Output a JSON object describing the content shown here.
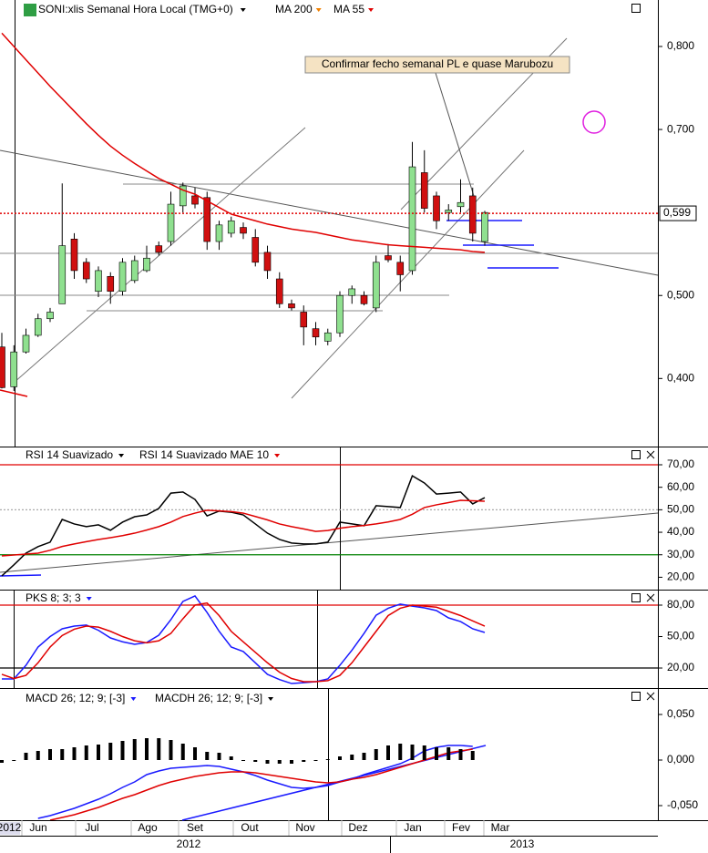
{
  "chart_data": [
    {
      "type": "candlestick",
      "title": "SONI:xlis Semanal Hora Local (TMG+0)",
      "open": [
        0.438,
        0.39,
        0.432,
        0.452,
        0.472,
        0.49,
        0.568,
        0.54,
        0.505,
        0.523,
        0.505,
        0.518,
        0.53,
        0.56,
        0.565,
        0.608,
        0.62,
        0.618,
        0.565,
        0.575,
        0.582,
        0.57,
        0.552,
        0.52,
        0.49,
        0.48,
        0.46,
        0.445,
        0.455,
        0.5,
        0.5,
        0.485,
        0.548,
        0.54,
        0.53,
        0.648,
        0.62,
        0.6,
        0.607,
        0.62,
        0.565
      ],
      "high": [
        0.455,
        0.44,
        0.46,
        0.478,
        0.485,
        0.635,
        0.575,
        0.545,
        0.535,
        0.528,
        0.545,
        0.548,
        0.56,
        0.565,
        0.625,
        0.636,
        0.63,
        0.625,
        0.59,
        0.595,
        0.588,
        0.58,
        0.56,
        0.528,
        0.495,
        0.488,
        0.468,
        0.46,
        0.505,
        0.512,
        0.505,
        0.548,
        0.562,
        0.548,
        0.685,
        0.675,
        0.625,
        0.61,
        0.64,
        0.63,
        0.602
      ],
      "low": [
        0.388,
        0.385,
        0.43,
        0.45,
        0.468,
        0.49,
        0.52,
        0.515,
        0.498,
        0.49,
        0.5,
        0.515,
        0.528,
        0.548,
        0.56,
        0.6,
        0.605,
        0.555,
        0.555,
        0.57,
        0.568,
        0.535,
        0.52,
        0.485,
        0.482,
        0.44,
        0.44,
        0.44,
        0.45,
        0.49,
        0.488,
        0.48,
        0.54,
        0.505,
        0.525,
        0.6,
        0.58,
        0.59,
        0.6,
        0.565,
        0.56
      ],
      "close": [
        0.389,
        0.432,
        0.452,
        0.472,
        0.48,
        0.56,
        0.53,
        0.52,
        0.53,
        0.505,
        0.54,
        0.542,
        0.545,
        0.552,
        0.61,
        0.632,
        0.61,
        0.565,
        0.585,
        0.59,
        0.575,
        0.54,
        0.53,
        0.49,
        0.485,
        0.462,
        0.45,
        0.455,
        0.5,
        0.508,
        0.49,
        0.54,
        0.543,
        0.525,
        0.655,
        0.605,
        0.59,
        0.603,
        0.612,
        0.575,
        0.6
      ],
      "up_color": "#8fe08f",
      "down_color": "#d01010",
      "series": [
        {
          "name": "MA 200",
          "color": "#f08000"
        },
        {
          "name": "MA 55",
          "color": "#e00000",
          "values": [
            0.816,
            0.8,
            0.784,
            0.768,
            0.752,
            0.737,
            0.722,
            0.707,
            0.693,
            0.68,
            0.669,
            0.659,
            0.65,
            0.641,
            0.634,
            0.627,
            0.622,
            0.614,
            0.606,
            0.598,
            0.594,
            0.59,
            0.586,
            0.583,
            0.58,
            0.578,
            0.576,
            0.573,
            0.57,
            0.567,
            0.565,
            0.563,
            0.561,
            0.56,
            0.559,
            0.558,
            0.557,
            0.556,
            0.555,
            0.553,
            0.552
          ]
        }
      ],
      "last_price": {
        "value": 0.599,
        "label": "0,599"
      },
      "annotation": "Confirmar fecho semanal PL e quase Marubozu",
      "ylim": [
        0.318,
        0.856
      ],
      "yticks": [
        {
          "value": 0.8,
          "label": "0,800"
        },
        {
          "value": 0.7,
          "label": "0,700"
        },
        {
          "value": 0.5,
          "label": "0,500"
        },
        {
          "value": 0.4,
          "label": "0,400"
        }
      ]
    },
    {
      "type": "line",
      "series": [
        {
          "name": "RSI 14 Suavizado",
          "color": "#000000",
          "values": [
            20.6,
            25.5,
            30.7,
            33.6,
            35.6,
            45.7,
            43.7,
            42.5,
            43.3,
            40.9,
            44.5,
            46.9,
            47.7,
            50.6,
            57.4,
            57.9,
            54.6,
            47.3,
            49.4,
            48.9,
            47.7,
            43.7,
            39.6,
            36.8,
            35.2,
            34.8,
            34.8,
            35.6,
            44.5,
            43.7,
            42.9,
            51.8,
            51.4,
            51.0,
            65.1,
            61.9,
            57.0,
            57.4,
            57.9,
            52.6,
            55.4
          ]
        },
        {
          "name": "RSI 14 Suavizado MAE 10",
          "color": "#e00000",
          "values": [
            29.5,
            29.9,
            30.3,
            30.7,
            32.0,
            33.7,
            34.8,
            35.8,
            36.8,
            37.6,
            38.5,
            39.6,
            41.0,
            42.5,
            44.5,
            47.0,
            48.5,
            49.8,
            49.5,
            49.2,
            48.5,
            47.0,
            45.5,
            43.7,
            42.5,
            41.5,
            40.4,
            40.8,
            41.8,
            42.5,
            43.0,
            43.7,
            44.6,
            45.7,
            48.0,
            51.0,
            52.2,
            53.2,
            54.2,
            54.0,
            53.8
          ]
        }
      ],
      "levels": [
        {
          "value": 70,
          "color": "#e00000"
        },
        {
          "value": 50,
          "color": "#aaaaaa"
        },
        {
          "value": 30,
          "color": "#008000"
        }
      ],
      "ylim": [
        14.5,
        77.7
      ],
      "yticks": [
        {
          "value": 70,
          "label": "70,00"
        },
        {
          "value": 60,
          "label": "60,00"
        },
        {
          "value": 50,
          "label": "50,00"
        },
        {
          "value": 40,
          "label": "40,00"
        },
        {
          "value": 30,
          "label": "30,00"
        },
        {
          "value": 20,
          "label": "20,00"
        }
      ]
    },
    {
      "type": "line",
      "series": [
        {
          "name": "PKS 8; 3; 3",
          "color": "#1a1aff",
          "values": [
            9.6,
            9.6,
            22.6,
            40,
            50,
            57.4,
            60,
            61,
            56,
            48.7,
            45,
            42.6,
            44.3,
            51.3,
            66.1,
            83.5,
            88.7,
            73,
            55,
            40,
            35.7,
            25,
            14,
            9,
            5.2,
            6,
            7,
            9.6,
            22.6,
            37,
            53,
            70.4,
            77,
            80.9,
            79,
            77.4,
            74.8,
            67.8,
            64.3,
            57.4,
            53.9
          ]
        },
        {
          "color": "#e00000",
          "values": [
            14,
            10,
            13,
            25,
            40,
            51,
            57,
            60,
            59,
            55,
            50,
            46,
            44,
            46,
            53,
            67,
            80,
            82,
            70,
            55,
            45,
            35,
            25,
            16,
            10,
            7,
            7,
            8,
            13,
            25,
            40,
            55,
            70,
            77,
            80,
            79,
            78,
            74,
            70,
            65,
            60
          ]
        }
      ],
      "levels": [
        {
          "value": 80,
          "color": "#e00000"
        },
        {
          "value": 20,
          "color": "#000000"
        }
      ],
      "ylim": [
        0.9,
        93.9
      ],
      "yticks": [
        {
          "value": 80,
          "label": "80,00"
        },
        {
          "value": 50,
          "label": "50,00"
        },
        {
          "value": 20,
          "label": "20,00"
        }
      ]
    },
    {
      "type": "macd",
      "series": [
        {
          "name": "MACD 26; 12; 9; [-3]",
          "color": "#1a1aff",
          "values": [
            null,
            null,
            null,
            -0.064,
            -0.061,
            -0.057,
            -0.053,
            -0.048,
            -0.043,
            -0.037,
            -0.03,
            -0.024,
            -0.016,
            -0.012,
            -0.009,
            -0.008,
            -0.007,
            -0.006,
            -0.007,
            -0.01,
            -0.013,
            -0.017,
            -0.022,
            -0.026,
            -0.03,
            -0.031,
            -0.03,
            -0.028,
            -0.024,
            -0.021,
            -0.016,
            -0.012,
            -0.008,
            -0.004,
            0.002,
            0.01,
            0.014,
            0.016,
            0.016,
            0.015,
            null
          ]
        },
        {
          "color": "#e00000",
          "values": [
            null,
            null,
            null,
            null,
            -0.066,
            -0.063,
            -0.06,
            -0.056,
            -0.052,
            -0.047,
            -0.042,
            -0.038,
            -0.033,
            -0.028,
            -0.024,
            -0.021,
            -0.018,
            -0.016,
            -0.014,
            -0.013,
            -0.013,
            -0.014,
            -0.016,
            -0.018,
            -0.02,
            -0.022,
            -0.024,
            -0.025,
            -0.024,
            -0.021,
            -0.019,
            -0.016,
            -0.012,
            -0.008,
            -0.004,
            0.0,
            0.004,
            0.008,
            0.01,
            0.012,
            null
          ]
        },
        {
          "name": "MACDH 26; 12; 9; [-3]",
          "color": "#000000",
          "kind": "bar",
          "values": [
            -0.003,
            0.0,
            0.008,
            0.01,
            0.012,
            0.012,
            0.014,
            0.016,
            0.017,
            0.019,
            0.021,
            0.023,
            0.024,
            0.024,
            0.022,
            0.018,
            0.014,
            0.009,
            0.008,
            0.004,
            0.0,
            -0.002,
            -0.004,
            -0.004,
            -0.004,
            -0.002,
            -0.001,
            0.001,
            0.004,
            0.006,
            0.008,
            0.012,
            0.016,
            0.018,
            0.017,
            0.016,
            0.014,
            0.014,
            0.012,
            0.01,
            null
          ]
        }
      ],
      "ylim": [
        -0.066,
        0.078
      ],
      "yticks": [
        {
          "value": 0.05,
          "label": "0,050"
        },
        {
          "value": 0,
          "label": "0,000"
        },
        {
          "value": -0.05,
          "label": "-0,050"
        }
      ],
      "x_labels": [
        "2012",
        "Jun",
        "Jul",
        "Ago",
        "Set",
        "Out",
        "Nov",
        "Dez",
        "Jan",
        "Fev",
        "Mar"
      ],
      "years": [
        "2012",
        "2013"
      ]
    }
  ]
}
